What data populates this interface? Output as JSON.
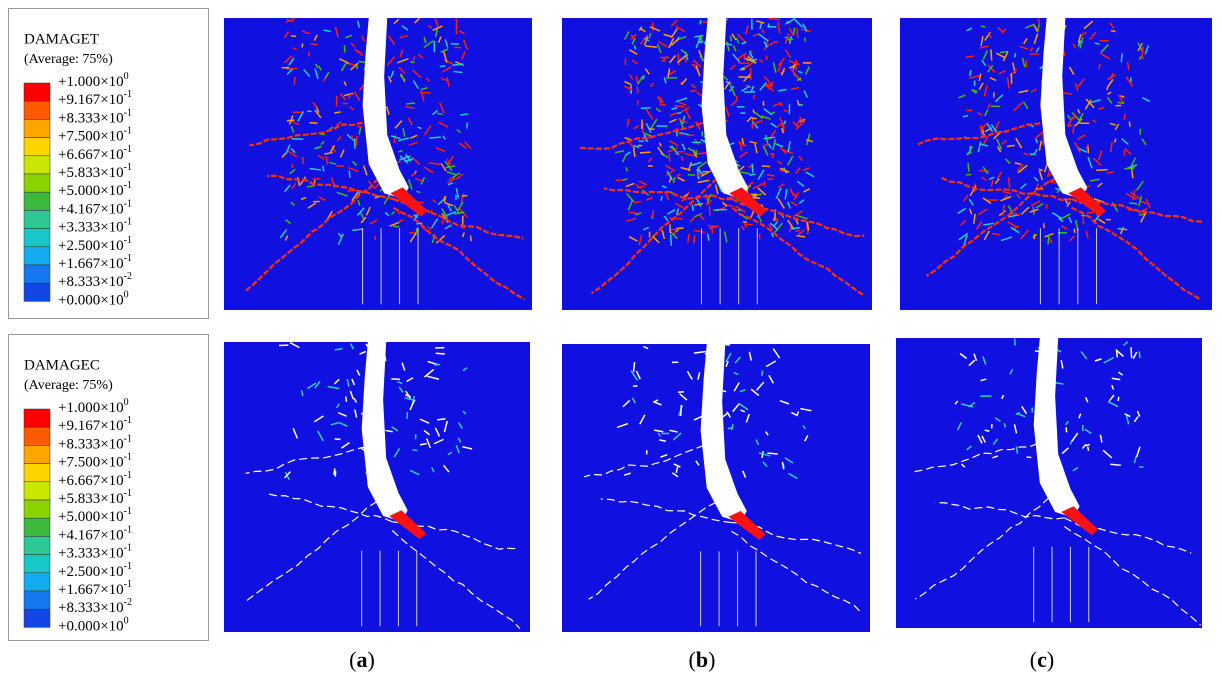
{
  "legends": [
    {
      "title": "DAMAGET",
      "subtitle": "(Average: 75%)",
      "labels": [
        {
          "base": "+1.000×10",
          "exp": "0"
        },
        {
          "base": "+9.167×10",
          "exp": "-1"
        },
        {
          "base": "+8.333×10",
          "exp": "-1"
        },
        {
          "base": "+7.500×10",
          "exp": "-1"
        },
        {
          "base": "+6.667×10",
          "exp": "-1"
        },
        {
          "base": "+5.833×10",
          "exp": "-1"
        },
        {
          "base": "+5.000×10",
          "exp": "-1"
        },
        {
          "base": "+4.167×10",
          "exp": "-1"
        },
        {
          "base": "+3.333×10",
          "exp": "-1"
        },
        {
          "base": "+2.500×10",
          "exp": "-1"
        },
        {
          "base": "+1.667×10",
          "exp": "-1"
        },
        {
          "base": "+8.333×10",
          "exp": "-2"
        },
        {
          "base": "+0.000×10",
          "exp": "0"
        }
      ]
    },
    {
      "title": "DAMAGEC",
      "subtitle": "(Average: 75%)",
      "labels": [
        {
          "base": "+1.000×10",
          "exp": "0"
        },
        {
          "base": "+9.167×10",
          "exp": "-1"
        },
        {
          "base": "+8.333×10",
          "exp": "-1"
        },
        {
          "base": "+7.500×10",
          "exp": "-1"
        },
        {
          "base": "+6.667×10",
          "exp": "-1"
        },
        {
          "base": "+5.833×10",
          "exp": "-1"
        },
        {
          "base": "+5.000×10",
          "exp": "-1"
        },
        {
          "base": "+4.167×10",
          "exp": "-1"
        },
        {
          "base": "+3.333×10",
          "exp": "-1"
        },
        {
          "base": "+2.500×10",
          "exp": "-1"
        },
        {
          "base": "+1.667×10",
          "exp": "-1"
        },
        {
          "base": "+8.333×10",
          "exp": "-2"
        },
        {
          "base": "+0.000×10",
          "exp": "0"
        }
      ]
    }
  ],
  "scale_colors": [
    "#ff0000",
    "#ff5a00",
    "#ffa500",
    "#ffd500",
    "#c8e600",
    "#8ad200",
    "#3cb83c",
    "#2dc896",
    "#18c8c8",
    "#14aaf0",
    "#1478f0",
    "#1446e6"
  ],
  "panels": [
    {
      "parts": [
        "(",
        "a",
        ")"
      ]
    },
    {
      "parts": [
        "(",
        "b",
        ")"
      ]
    },
    {
      "parts": [
        "(",
        "c",
        ")"
      ]
    }
  ]
}
